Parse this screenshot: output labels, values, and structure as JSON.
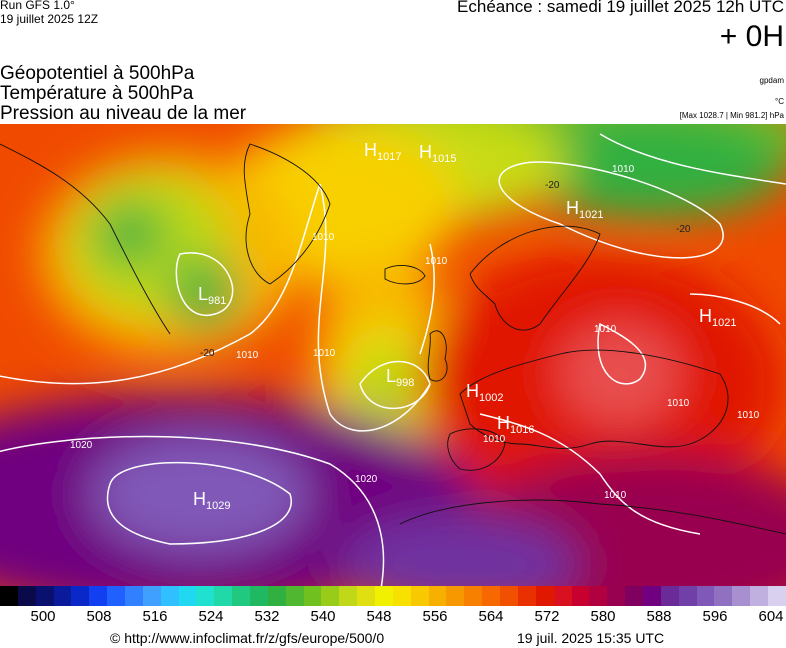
{
  "header": {
    "run": "Run GFS 1.0°",
    "run_date": "19 juillet 2025 12Z",
    "echeance": "Echéance : samedi 19 juillet 2025 12h UTC",
    "lead_time": "+ 0H"
  },
  "titles": {
    "line1": "Géopotentiel à 500hPa",
    "line2": "Température à 500hPa",
    "line3": "Pression au niveau de la mer"
  },
  "units": {
    "geopotential": "gpdam",
    "temperature": "°C",
    "pressure_range": "[Max 1028.7 | Min 981.2] hPa"
  },
  "pressure_centers": [
    {
      "type": "H",
      "value": "1017"
    },
    {
      "type": "H",
      "value": "1015"
    },
    {
      "type": "H",
      "value": "1021"
    },
    {
      "type": "L",
      "value": "981"
    },
    {
      "type": "L",
      "value": "998"
    },
    {
      "type": "H",
      "value": "1002"
    },
    {
      "type": "H",
      "value": "1016"
    },
    {
      "type": "H",
      "value": "1021"
    },
    {
      "type": "H",
      "value": "1029"
    }
  ],
  "isobar_labels": [
    "1010",
    "1010",
    "1010",
    "1010",
    "1010",
    "1020",
    "1020",
    "1010",
    "1010",
    "1010",
    "1010",
    "1010"
  ],
  "isotherm_labels": [
    "-20",
    "-20",
    "-20"
  ],
  "colorbar": {
    "ticks": [
      "500",
      "508",
      "516",
      "524",
      "532",
      "540",
      "548",
      "556",
      "564",
      "572",
      "580",
      "588",
      "596",
      "604"
    ],
    "colors": [
      "#000000",
      "#0a0a4a",
      "#0a1070",
      "#0a1a9a",
      "#0a28c8",
      "#1040f0",
      "#2060ff",
      "#3080ff",
      "#40a0ff",
      "#30c0ff",
      "#20d8f0",
      "#20e0d0",
      "#20d8a8",
      "#20c880",
      "#20b860",
      "#30b040",
      "#50b830",
      "#70c020",
      "#98cc18",
      "#c0d818",
      "#e0e010",
      "#f0f000",
      "#f8e000",
      "#f8c800",
      "#f8b000",
      "#f89800",
      "#f88000",
      "#f86800",
      "#f05000",
      "#e83000",
      "#e01800",
      "#d81020",
      "#c80030",
      "#b00040",
      "#980050",
      "#800060",
      "#700080",
      "#6a2a98",
      "#7040a8",
      "#8058b8",
      "#9070c0",
      "#a890d0",
      "#c0b0e0",
      "#d8d0ee"
    ]
  },
  "footer": {
    "source": "© http://www.infoclimat.fr/z/gfs/europe/500/0",
    "generated": "19 juil. 2025 15:35 UTC"
  }
}
